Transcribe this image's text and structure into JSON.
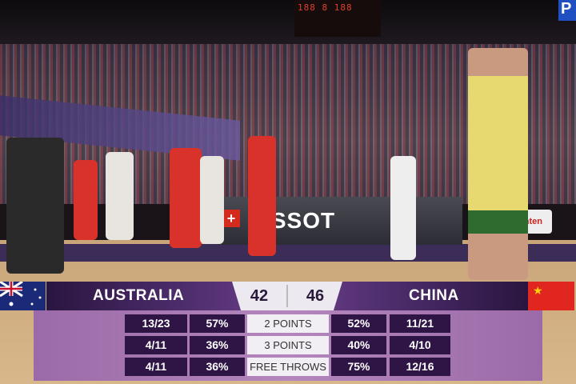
{
  "broadcast": {
    "channel_logo_letter": "P"
  },
  "arena": {
    "banner_text": "TISSOT",
    "side_banner_text": "Ganten",
    "scoreboard_digits": "188 8 188"
  },
  "scoreboard": {
    "home": {
      "name": "AUSTRALIA",
      "score": "42",
      "flag": "australia-flag"
    },
    "away": {
      "name": "CHINA",
      "score": "46",
      "flag": "china-flag"
    }
  },
  "stats": [
    {
      "label": "2 POINTS",
      "home_made": "13/23",
      "home_pct": "57%",
      "away_pct": "52%",
      "away_made": "11/21"
    },
    {
      "label": "3 POINTS",
      "home_made": "4/11",
      "home_pct": "36%",
      "away_pct": "40%",
      "away_made": "4/10"
    },
    {
      "label": "FREE THROWS",
      "home_made": "4/11",
      "home_pct": "36%",
      "away_pct": "75%",
      "away_made": "12/16"
    }
  ],
  "colors": {
    "overlay_dark": "#2f1546",
    "overlay_panel": "#b486bd",
    "australia_jersey": "#e8d870",
    "china_jersey": "#d8322a"
  }
}
